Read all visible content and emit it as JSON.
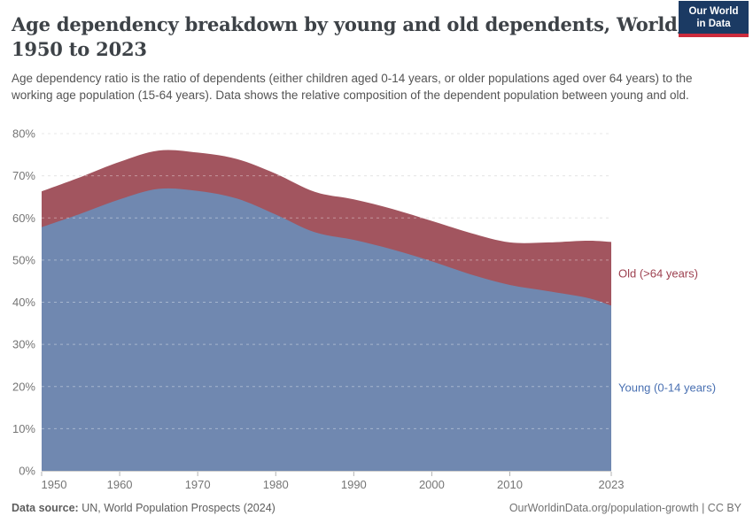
{
  "header": {
    "title_line1": "Age dependency breakdown by young and old dependents, World,",
    "title_line2": "1950 to 2023",
    "subtitle": "Age dependency ratio is the ratio of dependents (either children aged 0-14 years, or older populations aged over 64 years) to the working age population (15-64 years). Data shows the relative composition of the dependent population between young and old.",
    "logo": {
      "line1": "Our World",
      "line2": "in Data",
      "bg_color": "#1b3a63",
      "accent_color": "#cc2b3c"
    }
  },
  "chart_data": {
    "type": "area",
    "stacked": true,
    "title": "Age dependency breakdown by young and old dependents, World, 1950 to 2023",
    "xlabel": "",
    "ylabel": "",
    "ylim": [
      0,
      80
    ],
    "ytick_step": 10,
    "ytick_suffix": "%",
    "grid": "dashed",
    "x": [
      1950,
      1955,
      1960,
      1965,
      1970,
      1975,
      1980,
      1985,
      1990,
      1995,
      2000,
      2005,
      2010,
      2015,
      2020,
      2023
    ],
    "xticks": [
      1950,
      1960,
      1970,
      1980,
      1990,
      2000,
      2010,
      2023
    ],
    "series": [
      {
        "name": "Young (0-14 years)",
        "color": "#7088b0",
        "label_color": "#4970b2",
        "values": [
          57.8,
          61.0,
          64.4,
          66.9,
          66.4,
          64.6,
          60.8,
          56.6,
          54.8,
          52.5,
          49.7,
          46.6,
          44.1,
          42.6,
          41.0,
          39.2
        ]
      },
      {
        "name": "Old (>64 years)",
        "color": "#a2555f",
        "label_color": "#9d4150",
        "values": [
          8.5,
          8.7,
          8.9,
          9.1,
          9.1,
          9.4,
          9.7,
          9.6,
          9.6,
          9.6,
          9.6,
          9.8,
          10.1,
          11.6,
          13.6,
          15.1
        ]
      }
    ],
    "legend_position": "right-of-plot"
  },
  "footer": {
    "datasource_label": "Data source:",
    "datasource_value": " UN, World Population Prospects (2024)",
    "attribution": "OurWorldinData.org/population-growth | CC BY"
  }
}
